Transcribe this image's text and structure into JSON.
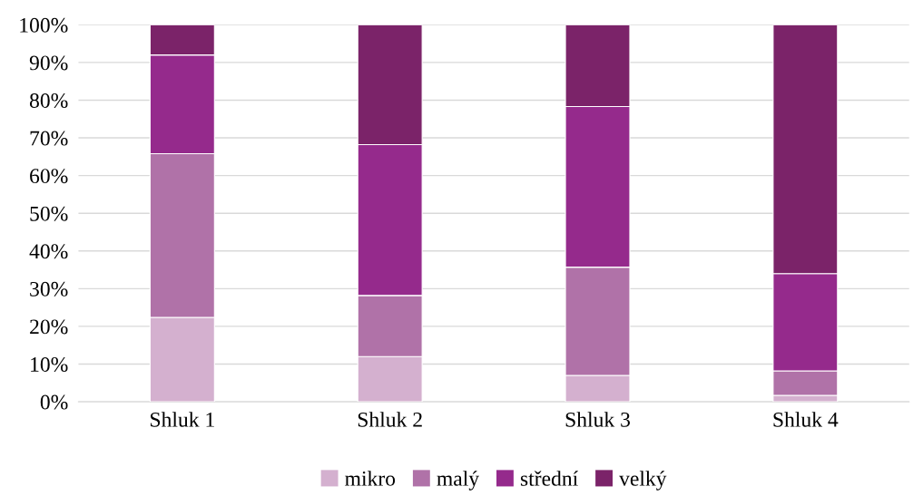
{
  "chart_data": {
    "type": "bar",
    "stacked": true,
    "categories": [
      "Shluk 1",
      "Shluk 2",
      "Shluk 3",
      "Shluk 4"
    ],
    "series": [
      {
        "name": "mikro",
        "color": "#d4b0cf",
        "values": [
          22.4,
          12.0,
          7.0,
          1.7
        ]
      },
      {
        "name": "malý",
        "color": "#b072a8",
        "values": [
          43.4,
          16.2,
          28.7,
          6.5
        ]
      },
      {
        "name": "střední",
        "color": "#952a8c",
        "values": [
          26.2,
          40.0,
          42.6,
          25.8
        ]
      },
      {
        "name": "velký",
        "color": "#7b2369",
        "values": [
          8.0,
          31.8,
          21.7,
          66.0
        ]
      }
    ],
    "ylim": [
      0,
      100
    ],
    "yticks": [
      {
        "value": 0,
        "label": "0%"
      },
      {
        "value": 10,
        "label": "10%"
      },
      {
        "value": 20,
        "label": "20%"
      },
      {
        "value": 30,
        "label": "30%"
      },
      {
        "value": 40,
        "label": "40%"
      },
      {
        "value": 50,
        "label": "50%"
      },
      {
        "value": 60,
        "label": "60%"
      },
      {
        "value": 70,
        "label": "70%"
      },
      {
        "value": 80,
        "label": "80%"
      },
      {
        "value": 90,
        "label": "90%"
      },
      {
        "value": 100,
        "label": "100%"
      }
    ],
    "grid": "y",
    "legend": "bottom"
  }
}
